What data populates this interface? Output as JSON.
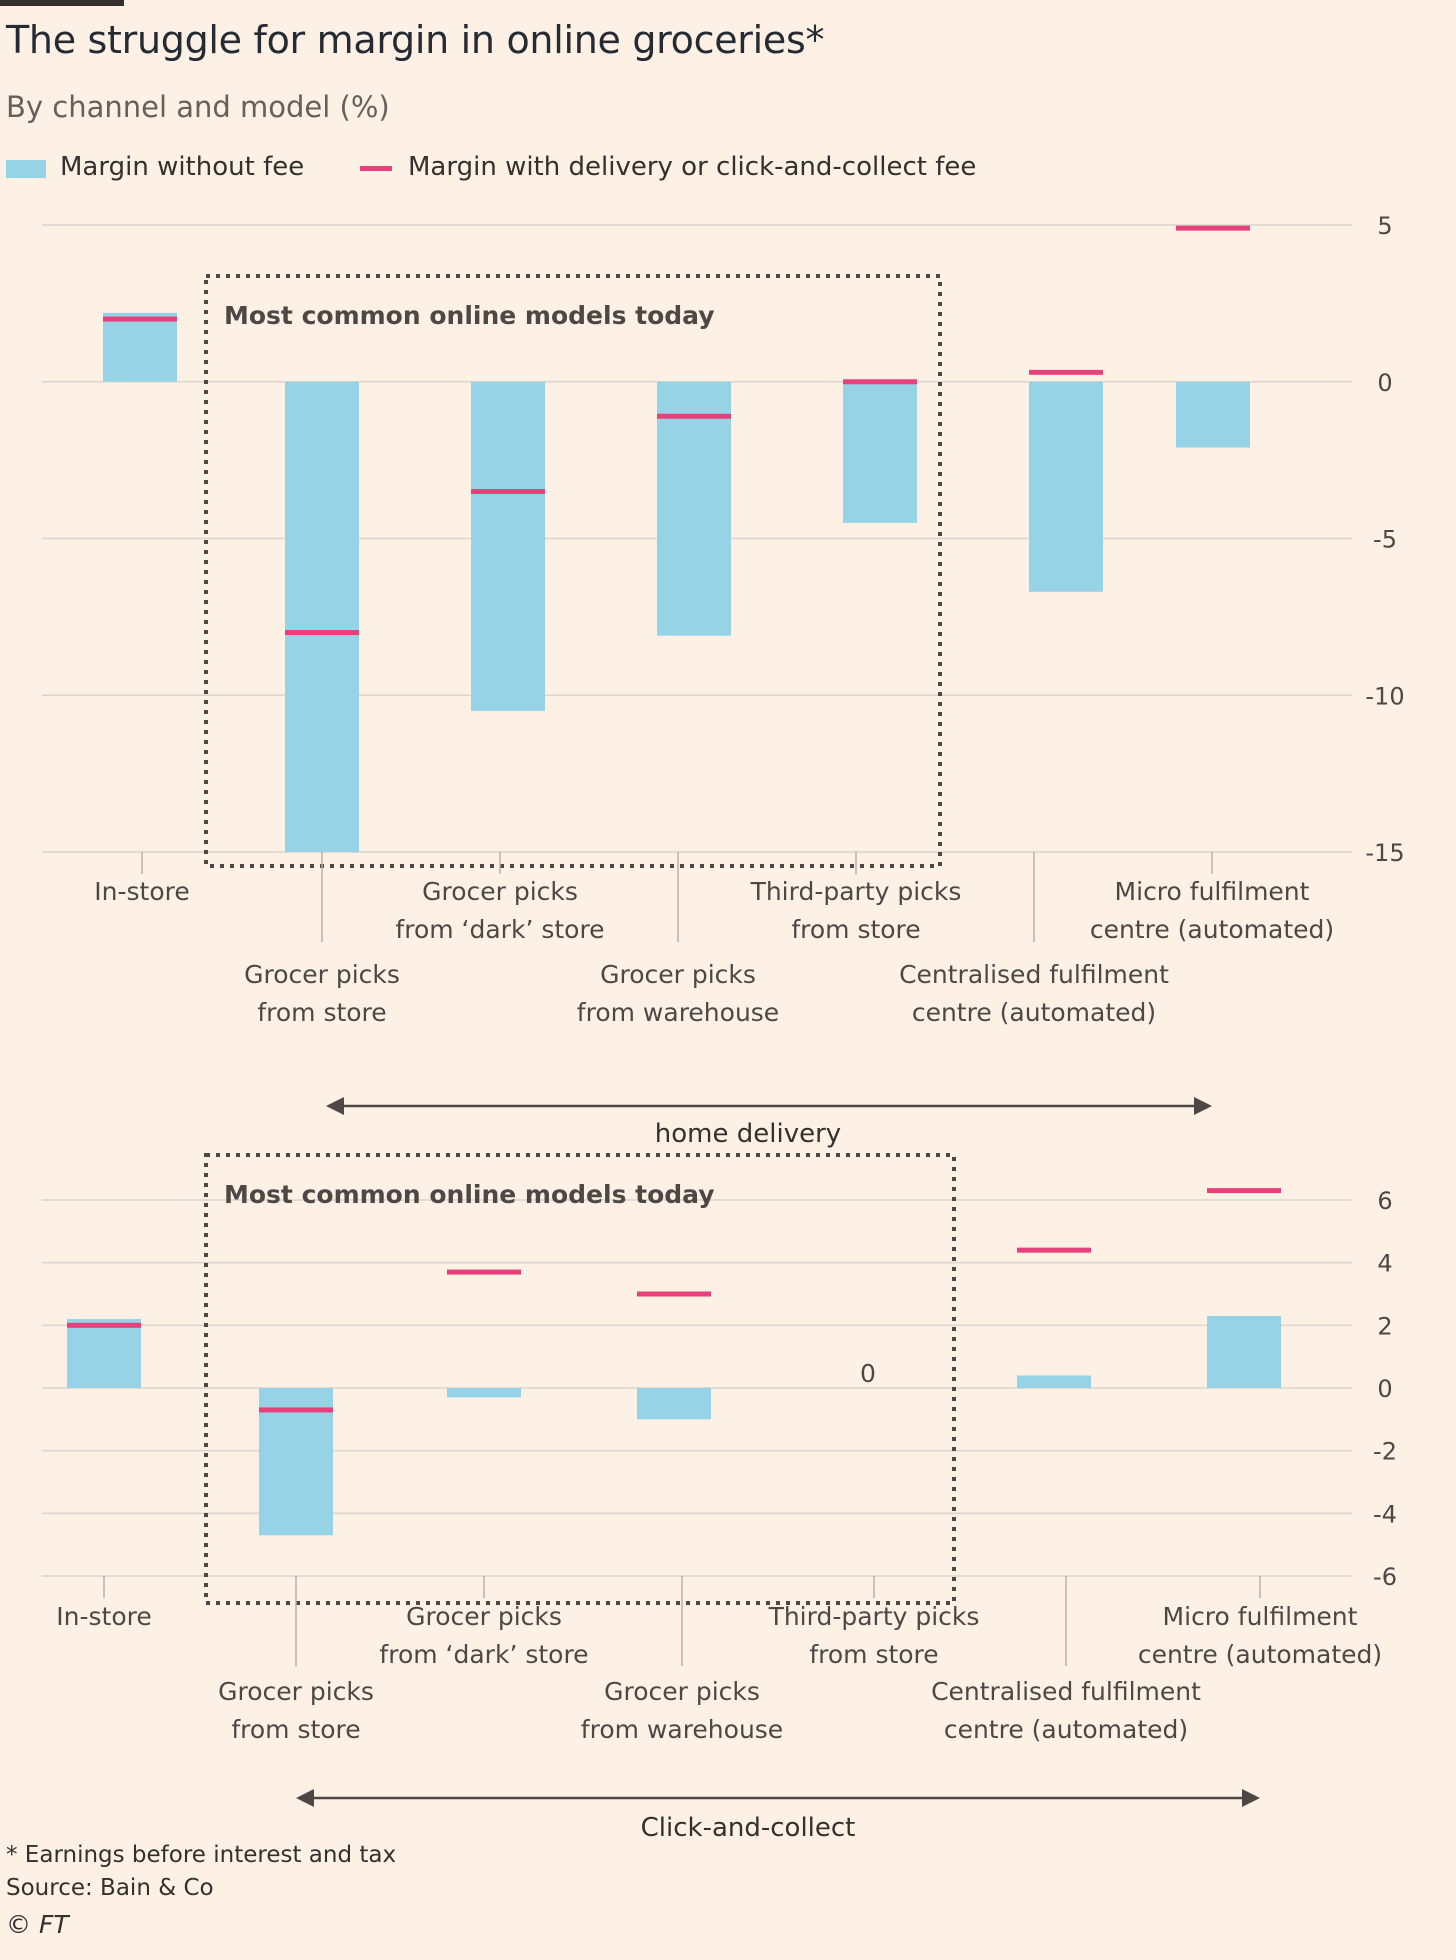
{
  "title": "The struggle for margin in online groceries*",
  "subtitle": "By channel and model (%)",
  "legend": {
    "bar_label": "Margin without fee",
    "line_label": "Margin with delivery or click-and-collect fee"
  },
  "colors": {
    "bar": "#96d3e6",
    "marker": "#e8407a",
    "background": "#fdf1e6"
  },
  "footnotes": {
    "note": "* Earnings before interest and tax",
    "source": "Source: Bain & Co",
    "copyright": "© FT"
  },
  "chart_data": [
    {
      "type": "bar",
      "section": "home delivery",
      "box_label": "Most common online models today",
      "categories": [
        [
          "In-store"
        ],
        [
          "Grocer picks",
          "from store"
        ],
        [
          "Grocer picks",
          "from ‘dark’ store"
        ],
        [
          "Grocer picks",
          "from warehouse"
        ],
        [
          "Third-party picks",
          "from store"
        ],
        [
          "Centralised fulfilment",
          "centre (automated)"
        ],
        [
          "Micro fulfilment",
          "centre (automated)"
        ]
      ],
      "series": [
        {
          "name": "Margin without fee",
          "values": [
            2.2,
            -15,
            -10.5,
            -8.1,
            -4.5,
            -6.7,
            -2.1
          ]
        },
        {
          "name": "Margin with delivery or click-and-collect fee",
          "values": [
            2.0,
            -8.0,
            -3.5,
            -1.1,
            0,
            0.3,
            4.9
          ]
        }
      ],
      "annotations": [],
      "yticks": [
        5,
        0,
        -5,
        -10,
        -15
      ],
      "ylim": [
        -15,
        5
      ],
      "arrow_label": "home delivery"
    },
    {
      "type": "bar",
      "section": "Click-and-collect",
      "box_label": "Most common online models today",
      "categories": [
        [
          "In-store"
        ],
        [
          "Grocer picks",
          "from store"
        ],
        [
          "Grocer picks",
          "from ‘dark’ store"
        ],
        [
          "Grocer picks",
          "from warehouse"
        ],
        [
          "Third-party picks",
          "from store"
        ],
        [
          "Centralised fulfilment",
          "centre (automated)"
        ],
        [
          "Micro fulfilment",
          "centre (automated)"
        ]
      ],
      "series": [
        {
          "name": "Margin without fee",
          "values": [
            2.2,
            -4.7,
            -0.3,
            -1.0,
            null,
            0.4,
            2.3
          ]
        },
        {
          "name": "Margin with delivery or click-and-collect fee",
          "values": [
            2.0,
            -0.7,
            3.7,
            3.0,
            null,
            4.4,
            6.3
          ]
        }
      ],
      "annotations": [
        {
          "category_index": 4,
          "text": "0"
        }
      ],
      "yticks": [
        6,
        4,
        2,
        0,
        -2,
        -4,
        -6
      ],
      "ylim": [
        -6,
        6
      ],
      "arrow_label": "Click-and-collect"
    }
  ]
}
